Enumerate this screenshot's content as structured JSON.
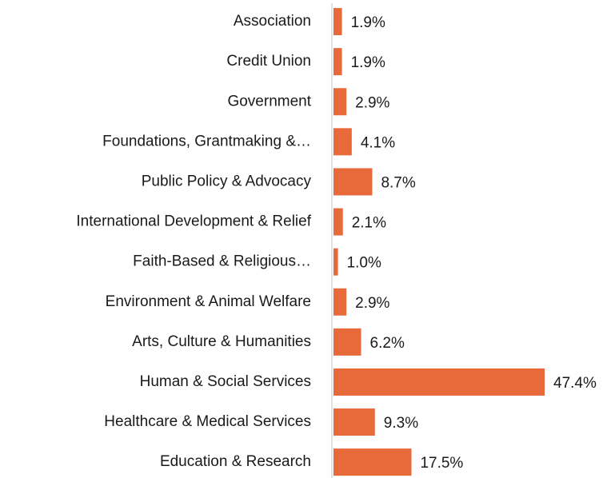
{
  "chart_data": {
    "type": "hbar",
    "categories": [
      "Association",
      "Credit Union",
      "Government",
      "Foundations, Grantmaking &…",
      "Public Policy & Advocacy",
      "International Development & Relief",
      "Faith-Based & Religious…",
      "Environment & Animal Welfare",
      "Arts, Culture & Humanities",
      "Human & Social Services",
      "Healthcare & Medical Services",
      "Education & Research"
    ],
    "values": [
      1.9,
      1.9,
      2.9,
      4.1,
      8.7,
      2.1,
      1.0,
      2.9,
      6.2,
      47.4,
      9.3,
      17.5
    ],
    "value_labels": [
      "1.9%",
      "1.9%",
      "2.9%",
      "4.1%",
      "8.7%",
      "2.1%",
      "1.0%",
      "2.9%",
      "6.2%",
      "47.4%",
      "9.3%",
      "17.5%"
    ],
    "color": "#e8693a"
  }
}
